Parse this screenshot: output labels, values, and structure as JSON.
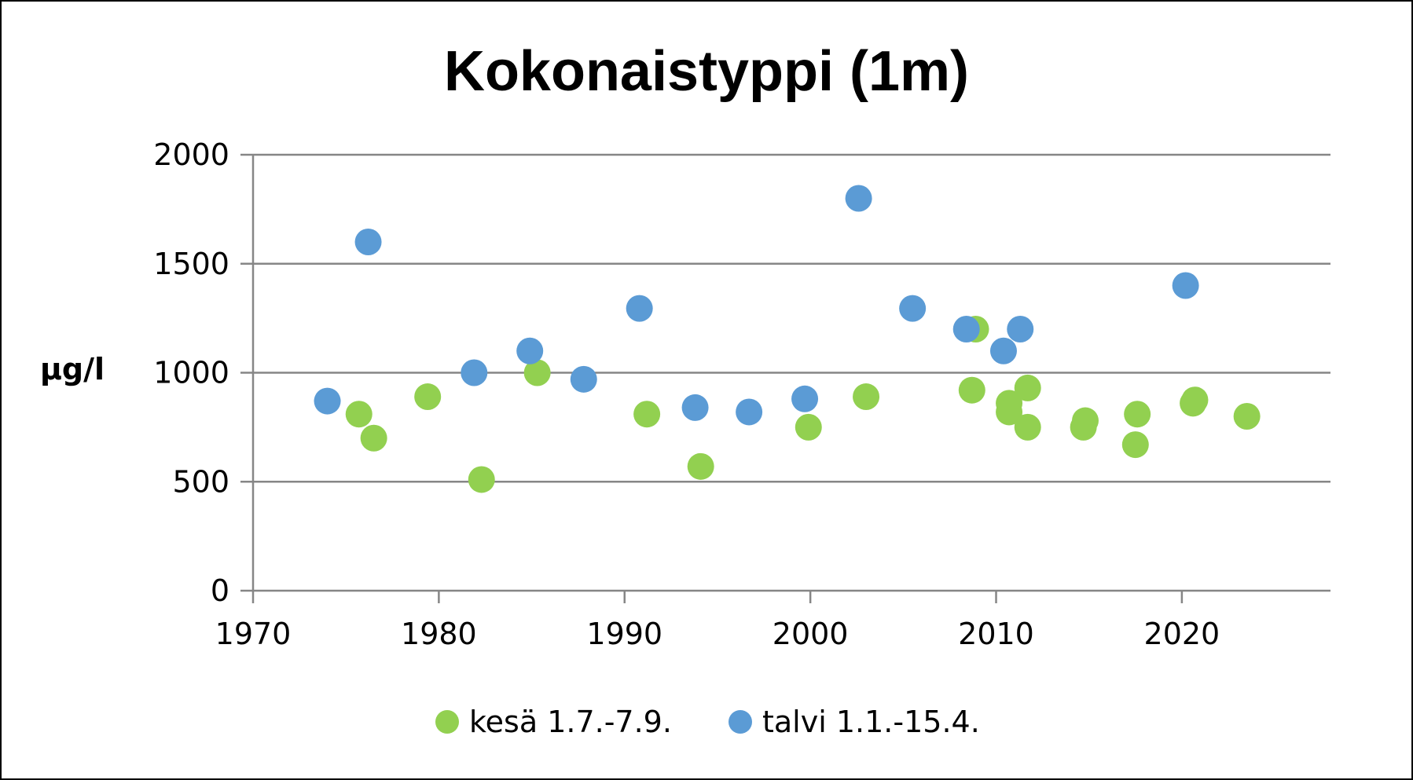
{
  "chart_data": {
    "type": "scatter",
    "title": "Kokonaistyppi (1m)",
    "ylabel": "µg/l",
    "xlabel": "",
    "xlim": [
      1970,
      2028
    ],
    "ylim": [
      0,
      2000
    ],
    "x_ticks": [
      1970,
      1980,
      1990,
      2000,
      2010,
      2020
    ],
    "y_ticks": [
      0,
      500,
      1000,
      1500,
      2000
    ],
    "grid": "horizontal",
    "legend_position": "bottom",
    "series": [
      {
        "name": "kesä 1.7.-7.9.",
        "color": "#92d050",
        "points": [
          [
            1975.7,
            810
          ],
          [
            1976.5,
            700
          ],
          [
            1979.4,
            890
          ],
          [
            1982.3,
            510
          ],
          [
            1985.3,
            1000
          ],
          [
            1991.2,
            810
          ],
          [
            1994.1,
            570
          ],
          [
            1999.9,
            750
          ],
          [
            2003.0,
            890
          ],
          [
            2008.9,
            1200
          ],
          [
            2008.7,
            920
          ],
          [
            2010.7,
            860
          ],
          [
            2010.7,
            820
          ],
          [
            2011.7,
            930
          ],
          [
            2011.7,
            750
          ],
          [
            2014.7,
            750
          ],
          [
            2014.8,
            780
          ],
          [
            2017.5,
            670
          ],
          [
            2017.6,
            810
          ],
          [
            2020.6,
            860
          ],
          [
            2020.7,
            875
          ],
          [
            2023.5,
            800
          ]
        ]
      },
      {
        "name": "talvi 1.1.-15.4.",
        "color": "#5b9bd5",
        "points": [
          [
            1974.0,
            870
          ],
          [
            1976.2,
            1600
          ],
          [
            1981.9,
            1000
          ],
          [
            1984.9,
            1100
          ],
          [
            1987.8,
            970
          ],
          [
            1990.8,
            1295
          ],
          [
            1993.8,
            840
          ],
          [
            1996.7,
            820
          ],
          [
            1999.7,
            880
          ],
          [
            2002.6,
            1800
          ],
          [
            2005.5,
            1295
          ],
          [
            2008.4,
            1200
          ],
          [
            2010.4,
            1100
          ],
          [
            2011.3,
            1200
          ],
          [
            2020.2,
            1400
          ]
        ]
      }
    ]
  }
}
